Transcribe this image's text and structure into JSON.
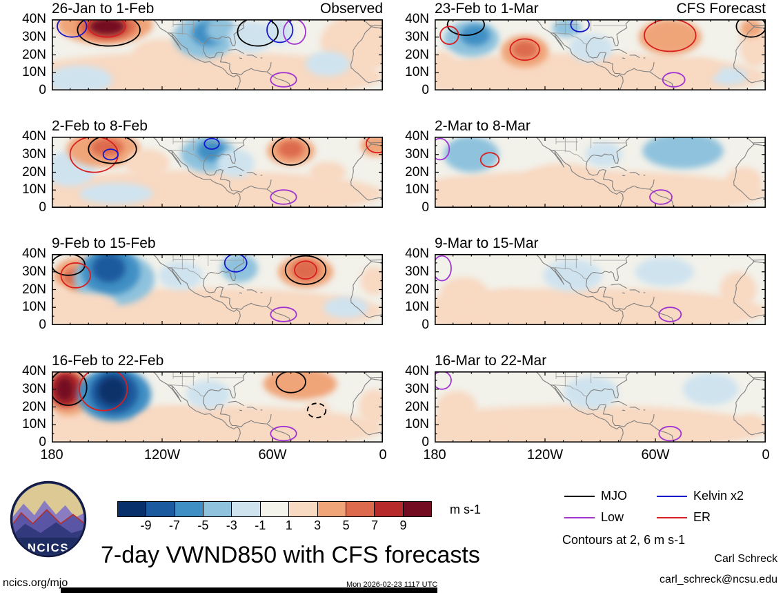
{
  "chart_data": {
    "type": "heatmap",
    "title": "7-day VWND850 with CFS forecasts",
    "contour_note": "Contours at 2, 6 m s-1",
    "x_ticks": [
      "180",
      "120W",
      "60W",
      "0"
    ],
    "y_ticks": [
      "40N",
      "30N",
      "20N",
      "10N",
      "0"
    ],
    "lon_range_deg_w": [
      180,
      0
    ],
    "lat_range_deg_n": [
      0,
      40
    ],
    "base_color": "#f2f1ea",
    "colorbar": {
      "levels": [
        -9,
        -7,
        -5,
        -3,
        -1,
        1,
        3,
        5,
        7,
        9
      ],
      "tick_labels": [
        "-9",
        "-7",
        "-5",
        "-3",
        "-1",
        "1",
        "3",
        "5",
        "7",
        "9"
      ],
      "colors": [
        "#08306b",
        "#1b5a9e",
        "#3f8fc4",
        "#8fc2dd",
        "#cfe3ef",
        "#f4f3ec",
        "#f8d9c2",
        "#f0a579",
        "#dd6a4d",
        "#b72a2b",
        "#740c21"
      ],
      "units_label": "m s-1"
    },
    "legend": {
      "items": [
        {
          "key": "mjo",
          "label": "MJO",
          "color": "#000000"
        },
        {
          "key": "kelvin",
          "label": "Kelvin x2",
          "color": "#1515cc"
        },
        {
          "key": "low",
          "label": "Low",
          "color": "#a133d1"
        },
        {
          "key": "er",
          "label": "ER",
          "color": "#d81e1e"
        }
      ]
    },
    "panels": [
      {
        "title": "26-Jan to 1-Feb",
        "corner_label": "Observed",
        "fills": [
          [
            100,
            8,
            100,
            14,
            2
          ],
          [
            165,
            6,
            18,
            8,
            -2
          ],
          [
            12,
            27,
            22,
            16,
            2
          ],
          [
            10,
            36,
            8,
            6,
            3
          ],
          [
            120,
            21,
            16,
            8,
            2
          ],
          [
            151,
            37,
            26,
            11,
            4
          ],
          [
            150,
            36,
            16,
            8,
            6
          ],
          [
            150,
            36,
            10,
            5,
            10
          ],
          [
            97,
            30,
            17,
            12,
            -4
          ],
          [
            95,
            32,
            9,
            7,
            -6
          ],
          [
            88,
            34,
            8,
            7,
            -4
          ],
          [
            72,
            30,
            12,
            9,
            -2
          ],
          [
            57,
            33,
            8,
            7,
            -2
          ],
          [
            30,
            15,
            12,
            7,
            -2
          ]
        ],
        "contours": [
          [
            149,
            34,
            17,
            9,
            "mjo"
          ],
          [
            150,
            36,
            10,
            6,
            "er"
          ],
          [
            169,
            36,
            8,
            6,
            "kelvin"
          ],
          [
            68,
            33,
            11,
            8,
            "mjo"
          ],
          [
            56,
            34,
            7,
            7,
            "kelvin"
          ],
          [
            48,
            33,
            6,
            7,
            "low"
          ],
          [
            54,
            6,
            7,
            4,
            "low"
          ]
        ]
      },
      {
        "title": "2-Feb to 8-Feb",
        "corner_label": "",
        "fills": [
          [
            100,
            8,
            100,
            13,
            2
          ],
          [
            170,
            22,
            14,
            10,
            -2
          ],
          [
            152,
            33,
            20,
            10,
            4
          ],
          [
            150,
            34,
            9,
            5,
            6
          ],
          [
            128,
            25,
            12,
            8,
            2
          ],
          [
            95,
            30,
            15,
            10,
            -4
          ],
          [
            93,
            32,
            8,
            6,
            -6
          ],
          [
            80,
            25,
            10,
            8,
            -2
          ],
          [
            50,
            32,
            13,
            8,
            4
          ],
          [
            50,
            33,
            7,
            5,
            6
          ],
          [
            30,
            20,
            10,
            6,
            2
          ],
          [
            4,
            35,
            8,
            6,
            4
          ],
          [
            145,
            8,
            20,
            6,
            -2
          ]
        ],
        "contours": [
          [
            157,
            30,
            13,
            10,
            "er"
          ],
          [
            147,
            33,
            13,
            8,
            "mjo"
          ],
          [
            148,
            30,
            4,
            3,
            "kelvin"
          ],
          [
            93,
            36,
            4,
            3,
            "kelvin"
          ],
          [
            50,
            32,
            10,
            8,
            "mjo"
          ],
          [
            3,
            36,
            6,
            5,
            "er"
          ],
          [
            54,
            6,
            7,
            4,
            "low"
          ]
        ]
      },
      {
        "title": "9-Feb to 15-Feb",
        "corner_label": "",
        "fills": [
          [
            100,
            8,
            100,
            13,
            2
          ],
          [
            166,
            28,
            13,
            10,
            4
          ],
          [
            167,
            27,
            7,
            5,
            6
          ],
          [
            178,
            15,
            8,
            8,
            2
          ],
          [
            146,
            26,
            22,
            15,
            -3
          ],
          [
            148,
            30,
            16,
            13,
            -5
          ],
          [
            149,
            32,
            9,
            8,
            -8
          ],
          [
            110,
            28,
            12,
            8,
            -2
          ],
          [
            78,
            32,
            10,
            8,
            -3
          ],
          [
            42,
            30,
            15,
            9,
            5
          ],
          [
            42,
            31,
            8,
            6,
            7
          ],
          [
            160,
            11,
            16,
            7,
            3
          ],
          [
            20,
            10,
            12,
            6,
            -2
          ],
          [
            5,
            25,
            7,
            8,
            2
          ]
        ],
        "contours": [
          [
            171,
            34,
            9,
            6,
            "mjo"
          ],
          [
            167,
            28,
            8,
            7,
            "er"
          ],
          [
            42,
            31,
            11,
            8,
            "mjo"
          ],
          [
            42,
            31,
            6,
            5,
            "er"
          ],
          [
            80,
            35,
            6,
            5,
            "kelvin"
          ],
          [
            54,
            6,
            7,
            4,
            "low"
          ]
        ]
      },
      {
        "title": "16-Feb to 22-Feb",
        "corner_label": "",
        "fills": [
          [
            100,
            8,
            100,
            13,
            2
          ],
          [
            171,
            28,
            13,
            13,
            5
          ],
          [
            172,
            30,
            9,
            10,
            8
          ],
          [
            173,
            30,
            5,
            7,
            11
          ],
          [
            146,
            27,
            20,
            15,
            -5
          ],
          [
            146,
            28,
            13,
            12,
            -8
          ],
          [
            147,
            29,
            8,
            8,
            -11
          ],
          [
            115,
            11,
            20,
            8,
            3
          ],
          [
            95,
            27,
            12,
            8,
            -2
          ],
          [
            45,
            33,
            20,
            9,
            4
          ],
          [
            50,
            34,
            9,
            5,
            5
          ],
          [
            36,
            18,
            7,
            6,
            2
          ],
          [
            5,
            20,
            8,
            10,
            2
          ]
        ],
        "contours": [
          [
            171,
            31,
            10,
            10,
            "mjo"
          ],
          [
            152,
            30,
            13,
            12,
            "er"
          ],
          [
            50,
            34,
            8,
            6,
            "mjo"
          ],
          [
            36,
            18,
            5,
            4,
            "mjo",
            1
          ],
          [
            54,
            5,
            7,
            4,
            "low"
          ]
        ]
      },
      {
        "title": "23-Feb to 1-Mar",
        "corner_label": "CFS Forecast",
        "fills": [
          [
            100,
            8,
            100,
            13,
            2
          ],
          [
            160,
            29,
            15,
            10,
            -3
          ],
          [
            158,
            31,
            8,
            6,
            -5
          ],
          [
            176,
            14,
            8,
            8,
            2
          ],
          [
            131,
            22,
            13,
            9,
            4
          ],
          [
            131,
            23,
            7,
            5,
            7
          ],
          [
            108,
            35,
            8,
            5,
            -3
          ],
          [
            95,
            24,
            12,
            8,
            -2
          ],
          [
            52,
            30,
            17,
            10,
            4
          ],
          [
            53,
            31,
            9,
            6,
            5
          ],
          [
            20,
            8,
            10,
            5,
            -2
          ],
          [
            6,
            25,
            8,
            12,
            3
          ],
          [
            8,
            35,
            6,
            5,
            5
          ],
          [
            35,
            12,
            10,
            6,
            2
          ]
        ],
        "contours": [
          [
            163,
            37,
            10,
            6,
            "mjo"
          ],
          [
            172,
            31,
            5,
            5,
            "er"
          ],
          [
            131,
            23,
            8,
            6,
            "er"
          ],
          [
            101,
            37,
            5,
            4,
            "kelvin"
          ],
          [
            52,
            31,
            14,
            9,
            "er"
          ],
          [
            8,
            36,
            8,
            6,
            "mjo"
          ],
          [
            50,
            6,
            6,
            4,
            "low"
          ]
        ]
      },
      {
        "title": "2-Mar to 8-Mar",
        "corner_label": "",
        "fills": [
          [
            100,
            8,
            100,
            13,
            1.5
          ],
          [
            160,
            30,
            15,
            10,
            -3
          ],
          [
            163,
            32,
            8,
            6,
            -4
          ],
          [
            110,
            15,
            22,
            10,
            2
          ],
          [
            88,
            30,
            10,
            7,
            -2
          ],
          [
            45,
            32,
            22,
            10,
            -3
          ],
          [
            40,
            33,
            11,
            6,
            -4
          ],
          [
            167,
            9,
            13,
            7,
            2
          ],
          [
            12,
            15,
            10,
            8,
            2
          ]
        ],
        "contours": [
          [
            177,
            33,
            5,
            6,
            "low"
          ],
          [
            150,
            27,
            5,
            4,
            "er"
          ],
          [
            57,
            6,
            6,
            4,
            "low"
          ]
        ]
      },
      {
        "title": "9-Mar to 15-Mar",
        "corner_label": "",
        "fills": [
          [
            100,
            8,
            100,
            13,
            1.5
          ],
          [
            164,
            18,
            13,
            9,
            2
          ],
          [
            105,
            28,
            16,
            9,
            -2
          ],
          [
            55,
            30,
            16,
            8,
            -2
          ],
          [
            15,
            20,
            10,
            10,
            2
          ],
          [
            140,
            13,
            15,
            7,
            2
          ]
        ],
        "contours": [
          [
            176,
            32,
            5,
            7,
            "low"
          ],
          [
            52,
            6,
            6,
            4,
            "low"
          ]
        ]
      },
      {
        "title": "16-Mar to 22-Mar",
        "corner_label": "",
        "fills": [
          [
            100,
            8,
            100,
            13,
            1.5
          ],
          [
            168,
            20,
            11,
            9,
            2
          ],
          [
            95,
            28,
            15,
            9,
            -2
          ],
          [
            30,
            30,
            15,
            9,
            -2
          ],
          [
            120,
            7,
            18,
            7,
            2
          ],
          [
            8,
            10,
            8,
            6,
            2
          ]
        ],
        "contours": [
          [
            176,
            35,
            5,
            5,
            "low"
          ],
          [
            52,
            5,
            6,
            4,
            "low"
          ]
        ]
      }
    ]
  },
  "logo": {
    "text": "NCICS"
  },
  "footer": {
    "site": "ncics.org/mjo",
    "timestamp": "Mon 2026-02-23 1117 UTC",
    "author": "Carl Schreck",
    "email": "carl_schreck@ncsu.edu"
  }
}
